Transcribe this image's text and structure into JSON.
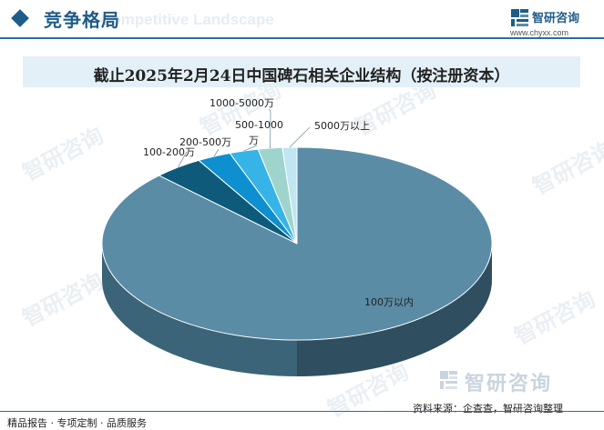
{
  "header": {
    "title": "竞争格局",
    "ghost_text": "Competitive Landscape"
  },
  "logo": {
    "name": "智研咨询",
    "url": "www.chyxx.com"
  },
  "chart_data": {
    "type": "pie",
    "title": "截止2025年2月24日中国碑石相关企业结构（按注册资本）",
    "categories": [
      "100万以内",
      "100-200万",
      "200-500万",
      "500-1000万",
      "1000-5000万",
      "5000万以上"
    ],
    "values": [
      87.5,
      4.1,
      2.8,
      2.4,
      2.0,
      1.2
    ],
    "labels": {
      "s0": "100万以内",
      "s1": "100-200万",
      "s2": "200-500万",
      "s3_line1": "500-1000",
      "s3_line2": "万",
      "s4": "1000-5000万",
      "s5": "5000万以上"
    },
    "colors": [
      "#5b8ca6",
      "#0d5a7a",
      "#0e8fcf",
      "#36b4e8",
      "#9fd4cc",
      "#bfe6f2"
    ],
    "side_colors": [
      "#3c6478",
      "#083f56",
      "#0a6590",
      "#2582a8",
      "#6f9c95",
      "#86aab4"
    ],
    "legend": "none",
    "style": "3d"
  },
  "watermark": {
    "text": "智研咨询"
  },
  "footer": {
    "logo_name": "智研咨询",
    "source": "资料来源：企查查，智研咨询整理",
    "left_text": "精品报告 · 专项定制 · 品质服务"
  }
}
